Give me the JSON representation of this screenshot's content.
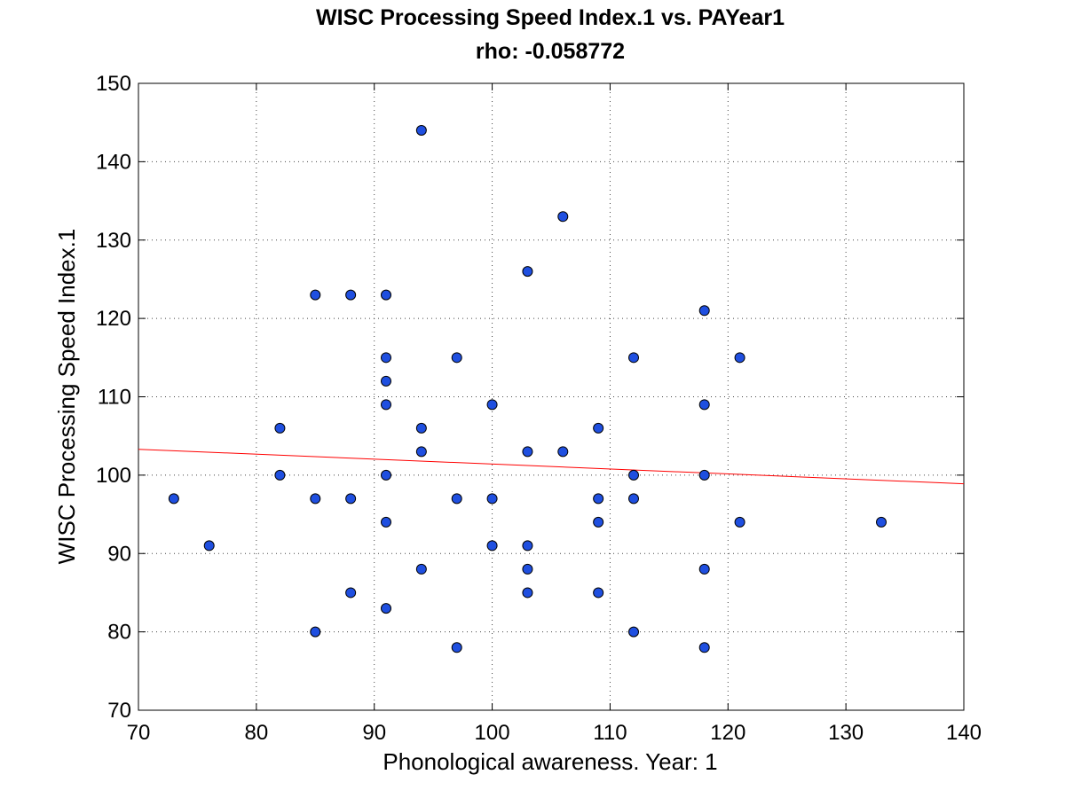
{
  "chart_data": {
    "type": "scatter",
    "title": "WISC Processing Speed Index.1 vs. PAYear1",
    "subtitle": "rho: -0.058772",
    "xlabel": "Phonological awareness. Year: 1",
    "ylabel": "WISC Processing Speed Index.1",
    "xlim": [
      70,
      140
    ],
    "ylim": [
      70,
      150
    ],
    "xticks": [
      70,
      80,
      90,
      100,
      110,
      120,
      130,
      140
    ],
    "yticks": [
      70,
      80,
      90,
      100,
      110,
      120,
      130,
      140,
      150
    ],
    "grid": true,
    "marker_color": "#1f4fe0",
    "marker_edge": "#000000",
    "fit_color": "#ff0000",
    "fit_line": {
      "x": [
        70,
        140
      ],
      "y": [
        103.3,
        98.9
      ]
    },
    "points": [
      [
        73,
        97
      ],
      [
        76,
        91
      ],
      [
        82,
        106
      ],
      [
        82,
        100
      ],
      [
        85,
        123
      ],
      [
        85,
        97
      ],
      [
        85,
        80
      ],
      [
        88,
        123
      ],
      [
        88,
        97
      ],
      [
        88,
        85
      ],
      [
        91,
        123
      ],
      [
        91,
        115
      ],
      [
        91,
        112
      ],
      [
        91,
        109
      ],
      [
        91,
        100
      ],
      [
        91,
        94
      ],
      [
        91,
        83
      ],
      [
        94,
        144
      ],
      [
        94,
        106
      ],
      [
        94,
        103
      ],
      [
        94,
        88
      ],
      [
        97,
        115
      ],
      [
        97,
        97
      ],
      [
        97,
        78
      ],
      [
        100,
        109
      ],
      [
        100,
        97
      ],
      [
        100,
        91
      ],
      [
        103,
        126
      ],
      [
        103,
        103
      ],
      [
        103,
        91
      ],
      [
        103,
        88
      ],
      [
        103,
        85
      ],
      [
        106,
        133
      ],
      [
        106,
        103
      ],
      [
        109,
        106
      ],
      [
        109,
        97
      ],
      [
        109,
        94
      ],
      [
        109,
        85
      ],
      [
        112,
        115
      ],
      [
        112,
        100
      ],
      [
        112,
        97
      ],
      [
        112,
        80
      ],
      [
        118,
        121
      ],
      [
        118,
        109
      ],
      [
        118,
        100
      ],
      [
        118,
        88
      ],
      [
        118,
        78
      ],
      [
        121,
        115
      ],
      [
        121,
        94
      ],
      [
        133,
        94
      ]
    ]
  }
}
